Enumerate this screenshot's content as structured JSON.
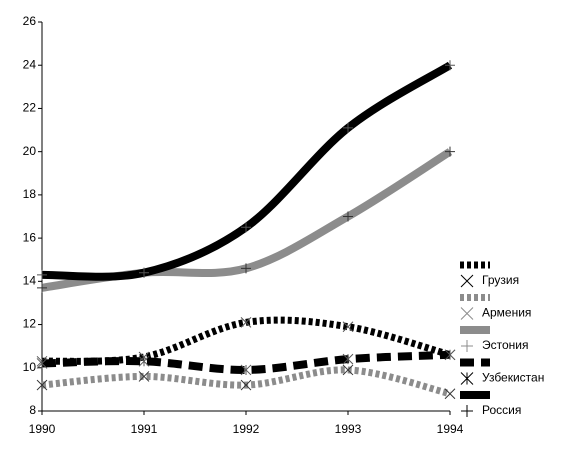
{
  "chart_data": {
    "type": "line",
    "x": [
      1990,
      1991,
      1992,
      1993,
      1994
    ],
    "xlim": [
      1990,
      1994
    ],
    "xticks": [
      1990,
      1991,
      1992,
      1993,
      1994
    ],
    "ylim": [
      8,
      26
    ],
    "yticks": [
      8,
      10,
      12,
      14,
      16,
      18,
      20,
      22,
      24,
      26
    ],
    "series": [
      {
        "name": "Грузия",
        "color": "#000000",
        "style": "dotted",
        "marker": "x",
        "values": [
          10.3,
          10.5,
          12.1,
          11.9,
          10.6
        ]
      },
      {
        "name": "Армения",
        "color": "#8c8c8c",
        "style": "dotted",
        "marker": "x",
        "values": [
          9.2,
          9.6,
          9.2,
          9.9,
          8.8
        ]
      },
      {
        "name": "Эстония",
        "color": "#8c8c8c",
        "style": "solid",
        "marker": "+",
        "values": [
          13.7,
          14.4,
          14.6,
          17.0,
          20.0
        ]
      },
      {
        "name": "Узбекистан",
        "color": "#000000",
        "style": "dashed",
        "marker": "*",
        "values": [
          10.2,
          10.3,
          9.9,
          10.4,
          10.6
        ]
      },
      {
        "name": "Россия",
        "color": "#000000",
        "style": "solid",
        "marker": "+",
        "values": [
          14.3,
          14.4,
          16.5,
          21.1,
          24.0
        ]
      }
    ]
  }
}
